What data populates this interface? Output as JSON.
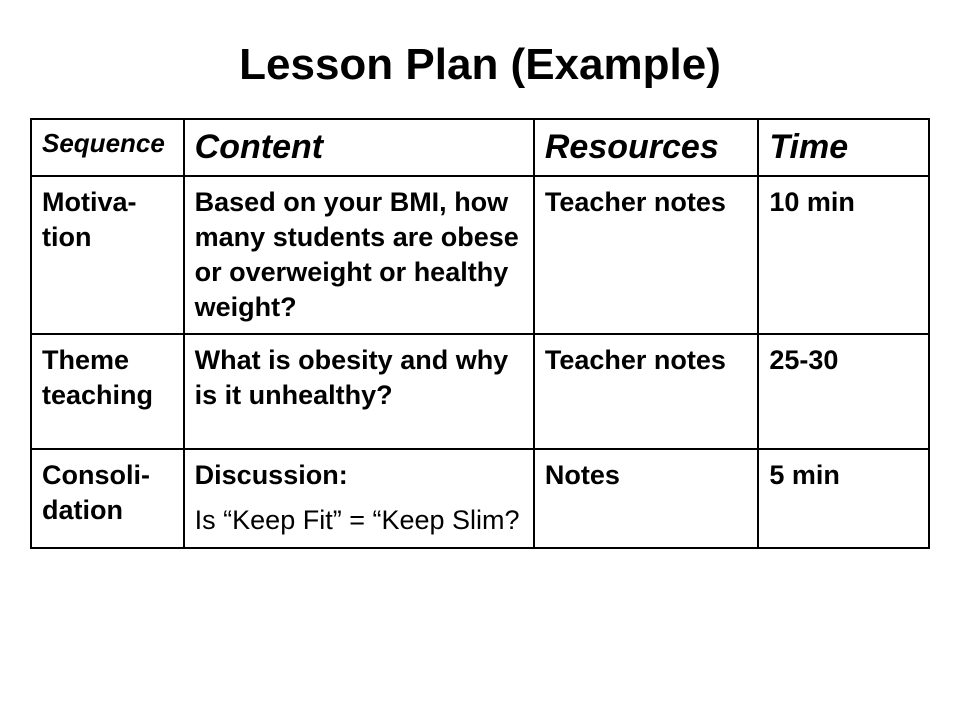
{
  "title": "Lesson Plan (Example)",
  "table": {
    "columns": [
      "Sequence",
      "Content",
      "Resources",
      "Time"
    ],
    "header_fontsize_small": 26,
    "header_fontsize_large": 34,
    "header_font_style": "italic",
    "body_fontsize": 27,
    "body_font_weight": "bold",
    "border_color": "#000000",
    "border_width": 2,
    "column_widths_pct": [
      17,
      39,
      25,
      19
    ],
    "rows": [
      {
        "sequence": "Motiva-tion",
        "content": "Based on your BMI, how many students are obese or overweight or healthy weight?",
        "resources": "Teacher notes",
        "time": "10 min"
      },
      {
        "sequence": "Theme teaching",
        "content": "What is obesity and why is it unhealthy?",
        "resources": "Teacher notes",
        "time": "25-30"
      },
      {
        "sequence": "Consoli-dation",
        "content_line1": "Discussion:",
        "content_line2": "Is “Keep Fit” = “Keep Slim?",
        "resources": "Notes",
        "time": "5 min"
      }
    ]
  },
  "colors": {
    "background": "#ffffff",
    "text": "#000000"
  }
}
